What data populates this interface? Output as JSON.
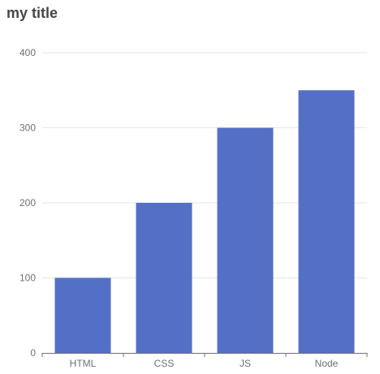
{
  "chart_data": {
    "type": "bar",
    "title": "my title",
    "categories": [
      "HTML",
      "CSS",
      "JS",
      "Node"
    ],
    "values": [
      100,
      200,
      300,
      350
    ],
    "ylim": [
      0,
      400
    ],
    "yticks": [
      0,
      100,
      200,
      300,
      400
    ],
    "xlabel": "",
    "ylabel": "",
    "grid": true,
    "bar_color": "#5470c6",
    "grid_color": "#e0e6f1",
    "axis_color": "#6e7079"
  }
}
